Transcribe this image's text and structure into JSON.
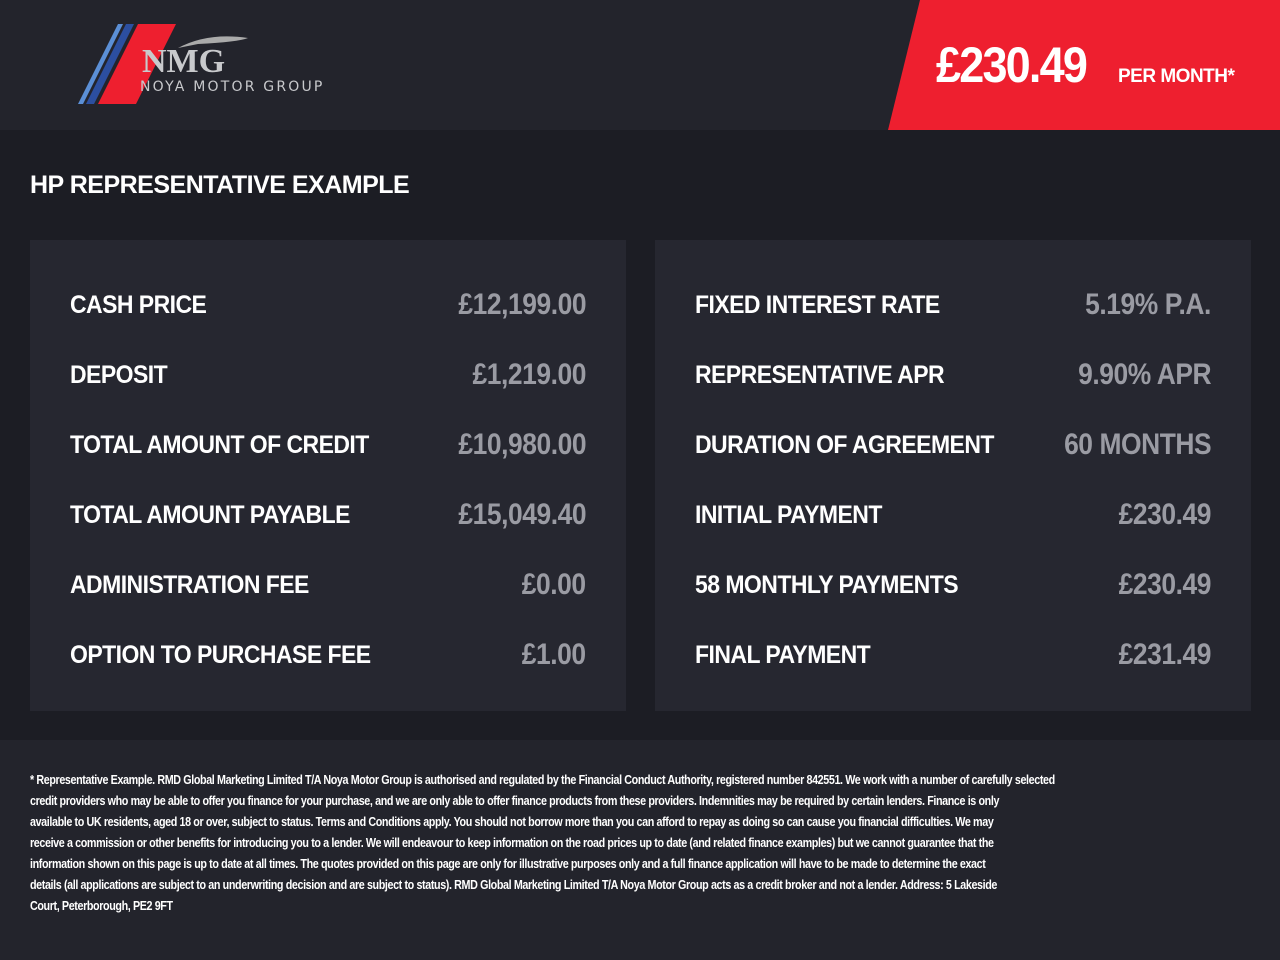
{
  "header": {
    "logo": {
      "mark": "NMG",
      "name": "NOYA MOTOR GROUP"
    },
    "price": "£230.49",
    "per_month": "PER MONTH*",
    "accent": "#ee1f2f"
  },
  "title": "HP REPRESENTATIVE EXAMPLE",
  "left": [
    {
      "label": "CASH PRICE",
      "value": "£12,199.00"
    },
    {
      "label": "DEPOSIT",
      "value": "£1,219.00"
    },
    {
      "label": "TOTAL AMOUNT OF CREDIT",
      "value": "£10,980.00"
    },
    {
      "label": "TOTAL AMOUNT PAYABLE",
      "value": "£15,049.40"
    },
    {
      "label": "ADMINISTRATION FEE",
      "value": "£0.00"
    },
    {
      "label": "OPTION TO PURCHASE FEE",
      "value": "£1.00"
    }
  ],
  "right": [
    {
      "label": "FIXED INTEREST RATE",
      "value": "5.19% P.A."
    },
    {
      "label": "REPRESENTATIVE APR",
      "value": "9.90% APR"
    },
    {
      "label": "DURATION OF AGREEMENT",
      "value": "60 MONTHS"
    },
    {
      "label": "INITIAL PAYMENT",
      "value": "£230.49"
    },
    {
      "label": "58 MONTHLY PAYMENTS",
      "value": "£230.49"
    },
    {
      "label": "FINAL PAYMENT",
      "value": "£231.49"
    }
  ],
  "footer": [
    "* Representative Example. RMD Global Marketing Limited T/A Noya Motor Group is authorised and regulated by the Financial Conduct Authority, registered number 842551. We work with a number of carefully selected",
    "credit providers who may be able to offer you finance for your purchase, and we are only able to offer finance products from these providers. Indemnities may be required by certain lenders. Finance is only",
    "available to UK residents, aged 18 or over, subject to status. Terms and Conditions apply. You should not borrow more than you can afford to repay as doing so can cause you financial difficulties. We may",
    "receive a commission or other benefits for introducing you to a lender. We will endeavour to keep information on the road prices up to date (and related finance examples) but we cannot guarantee that the",
    "information shown on this page is up to date at all times. The quotes provided on this page are only for illustrative purposes only and a full finance application will have to be made to determine the exact",
    "details (all applications are subject to an underwriting decision and are subject to status). RMD Global Marketing Limited T/A Noya Motor Group acts as a credit broker and not a lender. Address:  5 Lakeside",
    "Court, Peterborough, PE2 9FT"
  ]
}
